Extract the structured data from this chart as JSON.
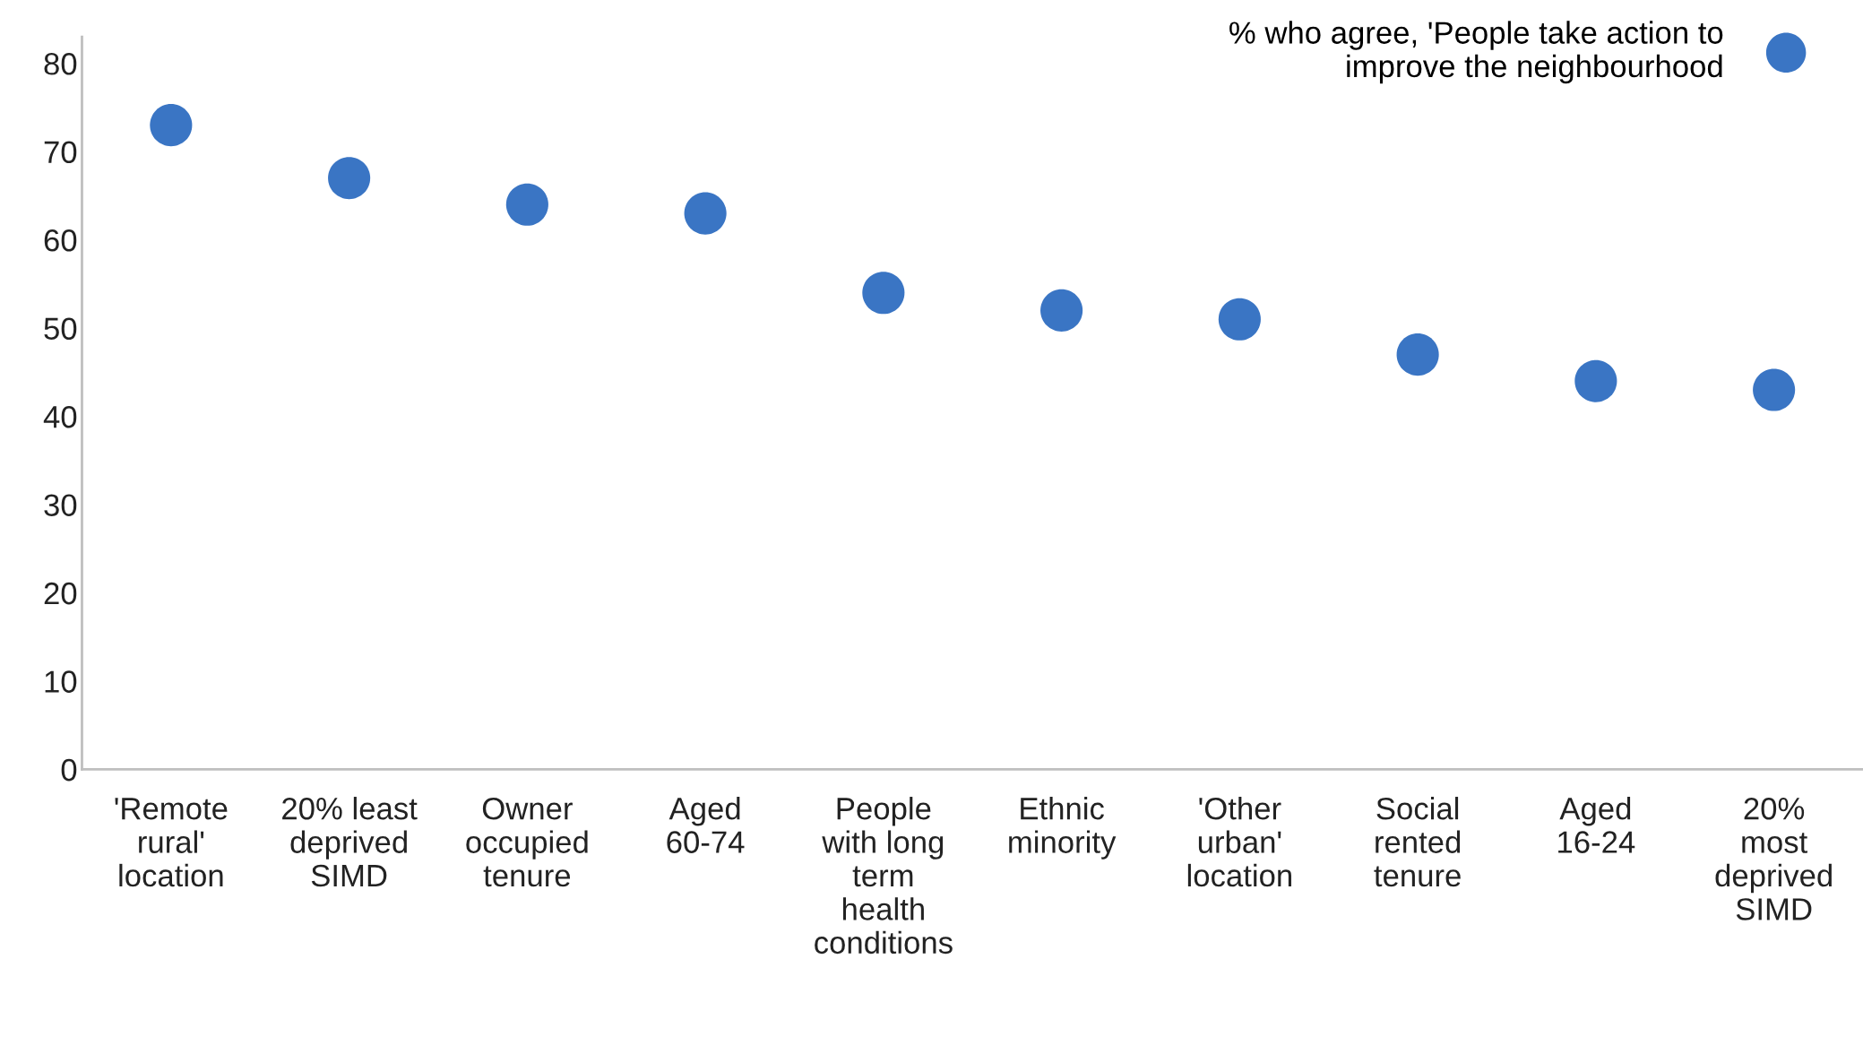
{
  "chart_data": {
    "type": "scatter",
    "categories": [
      "'Remote\nrural'\nlocation",
      "20% least\ndeprived\nSIMD",
      "Owner\noccupied\ntenure",
      "Aged\n60-74",
      "People\nwith long\nterm\nhealth\nconditions",
      "Ethnic\nminority",
      "'Other\nurban'\nlocation",
      "Social\nrented\ntenure",
      "Aged\n16-24",
      "20%\nmost\ndeprived\nSIMD"
    ],
    "series": [
      {
        "name": "% who agree, 'People take action to\nimprove the neighbourhood",
        "color": "#3a75c4",
        "values": [
          73,
          67,
          64,
          63,
          54,
          52,
          51,
          47,
          44,
          43
        ]
      }
    ],
    "ylim": [
      0,
      83
    ],
    "yticks": [
      0,
      10,
      20,
      30,
      40,
      50,
      60,
      70,
      80
    ],
    "grid": false,
    "legend": "top right",
    "marker": "circle"
  }
}
